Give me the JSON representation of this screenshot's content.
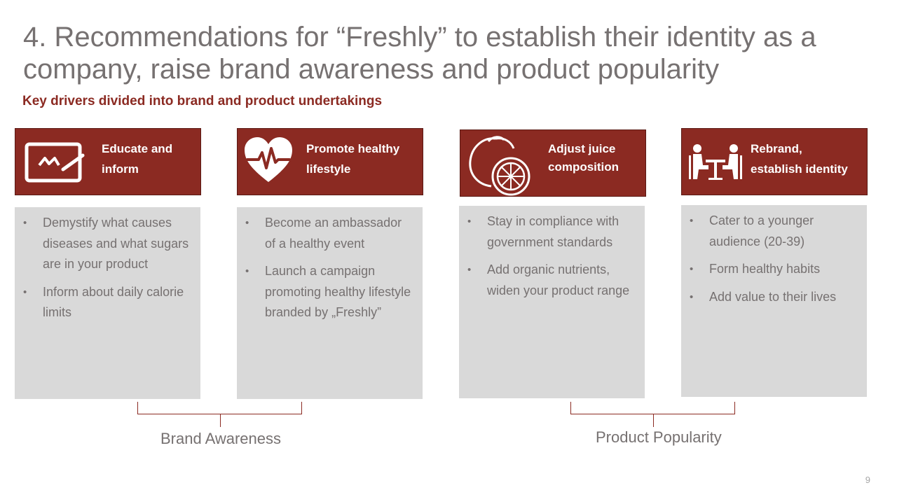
{
  "slide": {
    "title": "4. Recommendations for “Freshly” to establish their identity as a company, raise brand awareness and product popularity",
    "subtitle": "Key drivers divided into brand and product undertakings",
    "page_number": "9"
  },
  "cards": [
    {
      "icon": "education-board-icon",
      "heading_line1": "Educate and",
      "heading_line2": "inform",
      "bullets": [
        "Demystify what causes diseases and what sugars are in your product",
        "Inform about daily calorie limits"
      ]
    },
    {
      "icon": "heartbeat-icon",
      "heading_line1": "Promote healthy",
      "heading_line2": "lifestyle",
      "bullets": [
        "Become an ambassador of a healthy event",
        "Launch a campaign promoting healthy lifestyle branded by „Freshly”"
      ]
    },
    {
      "icon": "lemon-icon",
      "heading_line1": "Adjust juice",
      "heading_line2": "composition",
      "bullets": [
        "Stay in compliance with government standards",
        "Add organic nutrients, widen your product range"
      ]
    },
    {
      "icon": "meeting-people-icon",
      "heading_line1": "Rebrand,",
      "heading_line2": "establish identity",
      "bullets": [
        "Cater to a younger audience (20-39)",
        "Form healthy habits",
        "Add value to their lives"
      ]
    }
  ],
  "groups": {
    "brand": "Brand Awareness",
    "product": "Product Popularity"
  },
  "colors": {
    "accent": "#8B2A22",
    "panel": "#D9D9D9",
    "text_gray": "#767171"
  }
}
